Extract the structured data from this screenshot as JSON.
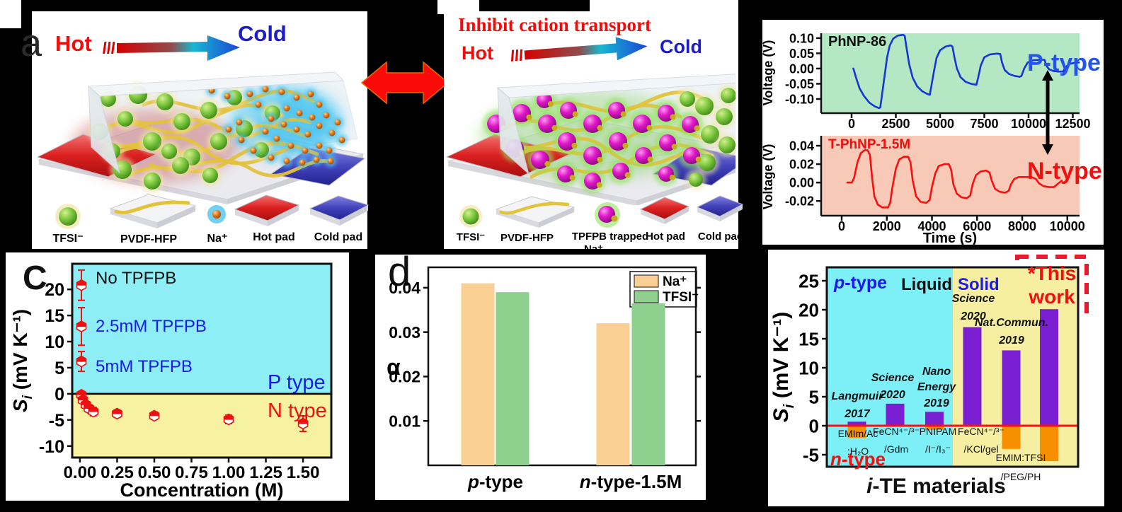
{
  "background": "#000000",
  "panel_a": {
    "letter": "a",
    "hot": "Hot",
    "cold": "Cold",
    "legend": [
      {
        "icon": "tfsi-sphere",
        "label": "TFSI⁻"
      },
      {
        "icon": "pvdf-slab",
        "label": "PVDF-HFP"
      },
      {
        "icon": "na-ion",
        "label": "Na⁺"
      },
      {
        "icon": "hot-pad",
        "label": "Hot pad"
      },
      {
        "icon": "cold-pad",
        "label": "Cold pad"
      }
    ]
  },
  "panel_b": {
    "title": "Inhibit cation transport",
    "hot": "Hot",
    "cold": "Cold",
    "legend": [
      {
        "icon": "tfsi-sphere",
        "label": "TFSI⁻"
      },
      {
        "icon": "pvdf-slab",
        "label": "PVDF-HFP"
      },
      {
        "icon": "tpfpb-trapped-na",
        "label": "TPFPB trapped",
        "label2": "Na⁺"
      },
      {
        "icon": "hot-pad",
        "label": "Hot pad"
      },
      {
        "icon": "cold-pad",
        "label": "Cold pad"
      }
    ]
  },
  "chart_data": [
    {
      "id": "p_type_voltage",
      "type": "line",
      "title": "PhNP-86",
      "annotation": "P-type",
      "ylabel": "Voltage (V)",
      "xlim": [
        -1720,
        12880
      ],
      "ylim": [
        -0.1465,
        0.116
      ],
      "xticks": [
        "0",
        "2500",
        "5000",
        "7500",
        "10000",
        "12500"
      ],
      "yticks": [
        "0.10",
        "0.05",
        "0.00",
        "-0.05",
        "-0.10"
      ],
      "line_color": "#1535d6",
      "bg": "#b4e7c4",
      "points": [
        [
          100,
          0.0
        ],
        [
          250,
          -0.03
        ],
        [
          450,
          -0.065
        ],
        [
          700,
          -0.09
        ],
        [
          1000,
          -0.112
        ],
        [
          1300,
          -0.124
        ],
        [
          1550,
          -0.13
        ],
        [
          1620,
          -0.128
        ],
        [
          1700,
          -0.095
        ],
        [
          1850,
          -0.03
        ],
        [
          2000,
          0.035
        ],
        [
          2150,
          0.075
        ],
        [
          2350,
          0.098
        ],
        [
          2600,
          0.108
        ],
        [
          2900,
          0.111
        ],
        [
          3000,
          0.108
        ],
        [
          3100,
          0.07
        ],
        [
          3250,
          0.015
        ],
        [
          3450,
          -0.03
        ],
        [
          3700,
          -0.058
        ],
        [
          4000,
          -0.075
        ],
        [
          4300,
          -0.084
        ],
        [
          4420,
          -0.086
        ],
        [
          4500,
          -0.06
        ],
        [
          4650,
          -0.01
        ],
        [
          4800,
          0.035
        ],
        [
          5000,
          0.06
        ],
        [
          5300,
          0.072
        ],
        [
          5600,
          0.076
        ],
        [
          5700,
          0.072
        ],
        [
          5800,
          0.04
        ],
        [
          5950,
          0.0
        ],
        [
          6150,
          -0.028
        ],
        [
          6450,
          -0.044
        ],
        [
          6800,
          -0.051
        ],
        [
          7050,
          -0.053
        ],
        [
          7150,
          -0.03
        ],
        [
          7300,
          0.01
        ],
        [
          7500,
          0.037
        ],
        [
          7800,
          0.046
        ],
        [
          8200,
          0.049
        ],
        [
          8400,
          0.048
        ],
        [
          8500,
          0.02
        ],
        [
          8650,
          -0.005
        ],
        [
          8900,
          -0.018
        ],
        [
          9200,
          -0.024
        ],
        [
          9500,
          -0.027
        ],
        [
          9600,
          -0.024
        ],
        [
          9750,
          0.0
        ],
        [
          9950,
          0.02
        ],
        [
          10250,
          0.027
        ],
        [
          10600,
          0.029
        ],
        [
          10900,
          0.029
        ],
        [
          11000,
          0.01
        ],
        [
          11150,
          -0.002
        ],
        [
          11400,
          -0.008
        ],
        [
          11700,
          -0.01
        ],
        [
          11950,
          -0.01
        ],
        [
          12050,
          0.0
        ],
        [
          12100,
          0.005
        ],
        [
          12300,
          0.015
        ],
        [
          12600,
          0.019
        ],
        [
          12850,
          0.02
        ]
      ]
    },
    {
      "id": "n_type_voltage",
      "type": "line",
      "title": "T-PhNP-1.5M",
      "annotation": "N-type",
      "xlabel": "Time (s)",
      "ylabel": "Voltage (V)",
      "xlim": [
        -910,
        10540
      ],
      "ylim": [
        -0.036,
        0.0508
      ],
      "xticks": [
        "0",
        "2000",
        "4000",
        "6000",
        "8000",
        "10000"
      ],
      "yticks": [
        "0.04",
        "0.02",
        "0.00",
        "-0.02"
      ],
      "line_color": "#fa0f0f",
      "bg": "#f7c9b6",
      "points": [
        [
          250,
          0.0
        ],
        [
          450,
          0.0
        ],
        [
          550,
          0.005
        ],
        [
          700,
          0.022
        ],
        [
          850,
          0.032
        ],
        [
          1000,
          0.035
        ],
        [
          1150,
          0.035
        ],
        [
          1250,
          0.03
        ],
        [
          1350,
          0.005
        ],
        [
          1450,
          -0.015
        ],
        [
          1600,
          -0.024
        ],
        [
          1800,
          -0.027
        ],
        [
          2050,
          -0.027
        ],
        [
          2150,
          -0.022
        ],
        [
          2250,
          -0.005
        ],
        [
          2400,
          0.015
        ],
        [
          2550,
          0.025
        ],
        [
          2750,
          0.028
        ],
        [
          2950,
          0.028
        ],
        [
          3050,
          0.022
        ],
        [
          3150,
          0.002
        ],
        [
          3300,
          -0.015
        ],
        [
          3500,
          -0.021
        ],
        [
          3750,
          -0.022
        ],
        [
          3900,
          -0.019
        ],
        [
          4000,
          -0.005
        ],
        [
          4150,
          0.01
        ],
        [
          4300,
          0.018
        ],
        [
          4550,
          0.02
        ],
        [
          4750,
          0.02
        ],
        [
          4850,
          0.014
        ],
        [
          4950,
          -0.002
        ],
        [
          5100,
          -0.012
        ],
        [
          5300,
          -0.016
        ],
        [
          5550,
          -0.017
        ],
        [
          5700,
          -0.014
        ],
        [
          5800,
          -0.002
        ],
        [
          5950,
          0.008
        ],
        [
          6150,
          0.012
        ],
        [
          6400,
          0.013
        ],
        [
          6550,
          0.011
        ],
        [
          6650,
          0.002
        ],
        [
          6800,
          -0.007
        ],
        [
          7000,
          -0.01
        ],
        [
          7250,
          -0.011
        ],
        [
          7400,
          -0.009
        ],
        [
          7500,
          -0.002
        ],
        [
          7650,
          0.004
        ],
        [
          7850,
          0.006
        ],
        [
          8100,
          0.006
        ],
        [
          8400,
          0.006
        ],
        [
          8600,
          0.004
        ],
        [
          8750,
          -0.001
        ],
        [
          8950,
          -0.004
        ],
        [
          9200,
          -0.005
        ],
        [
          9400,
          -0.005
        ],
        [
          9550,
          -0.002
        ],
        [
          9650,
          0.0
        ],
        [
          9750,
          0.002
        ]
      ]
    },
    {
      "id": "si_vs_concentration",
      "type": "scatter",
      "panel_letter": "C",
      "xlabel": "Concentration (M)",
      "ylabel": "Sᵢ (mV K⁻¹)",
      "ylabel_s": "S",
      "ylabel_sub": "i",
      "ylabel_rest": " (mV K⁻¹)",
      "xlim": [
        -0.052,
        1.69
      ],
      "ylim": [
        -12.2,
        24.9
      ],
      "xticks": [
        "0.00",
        "0.25",
        "0.50",
        "0.75",
        "1.00",
        "1.25",
        "1.50"
      ],
      "yticks": [
        "20",
        "15",
        "10",
        "5",
        "0",
        "-5",
        "-10"
      ],
      "p_region_label": "P type",
      "n_region_label": "N type",
      "p_region_color": "#8deef6",
      "n_region_color": "#f6f2a2",
      "marker_color": "#ee1111",
      "annotations": [
        "No TPFPB",
        "2.5mM TPFPB",
        "5mM TPFPB"
      ],
      "points": [
        {
          "x": 0.01,
          "y": 20.8,
          "err": 2.9
        },
        {
          "x": 0.01,
          "y": 12.9,
          "err": 3.6
        },
        {
          "x": 0.01,
          "y": 6.2,
          "err": 1.9
        },
        {
          "x": 0.01,
          "y": -0.2,
          "err": 0.5
        },
        {
          "x": 0.02,
          "y": -1.2,
          "err": 0.5
        },
        {
          "x": 0.04,
          "y": -2.1,
          "err": 0.6
        },
        {
          "x": 0.06,
          "y": -2.8,
          "err": 0.7
        },
        {
          "x": 0.09,
          "y": -3.4,
          "err": 0.8
        },
        {
          "x": 0.25,
          "y": -3.8,
          "err": 0.7
        },
        {
          "x": 0.5,
          "y": -4.2,
          "err": 0.7
        },
        {
          "x": 1.0,
          "y": -4.9,
          "err": 0.8
        },
        {
          "x": 1.5,
          "y": -5.7,
          "err": 1.5
        }
      ]
    },
    {
      "id": "alpha_transference",
      "type": "bar",
      "panel_letter": "d",
      "ylabel": "α",
      "categories": [
        {
          "i": "p",
          "rest": "-type"
        },
        {
          "i": "n",
          "rest": "-type-1.5M"
        }
      ],
      "series": [
        {
          "name": "Na⁺",
          "color": "#f9cf94",
          "values": [
            0.041,
            0.032
          ]
        },
        {
          "name": "TFSI⁻",
          "color": "#8fd08f",
          "values": [
            0.039,
            0.0365
          ]
        }
      ],
      "yticks": [
        "0.04",
        "0.03",
        "0.02",
        "0.01"
      ],
      "ylim": [
        0,
        0.0446
      ]
    },
    {
      "id": "ite_materials_comparison",
      "type": "bar",
      "xlabel_i": "i",
      "xlabel_rest": "-TE materials",
      "ylabel": "Sᵢ (mV K⁻¹)",
      "ylabel_s": "S",
      "ylabel_sub": "i",
      "ylabel_rest": " (mV K⁻¹)",
      "yticks": [
        "25",
        "20",
        "15",
        "10",
        "5",
        "0",
        "-5"
      ],
      "ylim": [
        -7.07,
        27.32
      ],
      "p_label_i": "p",
      "p_label_rest": "-type",
      "n_label_i": "n",
      "n_label_rest": "-type",
      "liquid_label": "Liquid",
      "solid_label": "Solid",
      "highlight_line1": "*This",
      "highlight_line2": "work",
      "pos_color": "#7a1ed2",
      "neg_color": "#f88f00",
      "liquid_bg": "#7df0f7",
      "solid_bg": "#f6efa1",
      "zero_line_color": "#fb1111",
      "bars": [
        {
          "citation": [
            "Langmuir",
            "2017"
          ],
          "material": [
            "EMIm/Ac",
            ":H₂O"
          ],
          "p": 0.7,
          "n": -2.1
        },
        {
          "citation": [
            "Science",
            "2020"
          ],
          "material": [
            "FeCN⁴⁻/³⁻",
            "/Gdm"
          ],
          "p": 3.8,
          "n": 0
        },
        {
          "citation": [
            "Nano",
            "Energy",
            "2019"
          ],
          "material": [
            "PNIPAM",
            "/I⁻/I₃⁻"
          ],
          "p": 2.4,
          "n": -0.7
        },
        {
          "citation": [
            "Science",
            "2020"
          ],
          "material": [
            "FeCN⁴⁻/³⁻",
            "/KCl/gel"
          ],
          "p": 17.0,
          "n": 0
        },
        {
          "citation": [
            "Nat.Commun.",
            "2019"
          ],
          "material": [
            "EMIM:TFSI",
            "/PEG/PH"
          ],
          "p": 13.0,
          "n": -4.0
        },
        {
          "citation": [],
          "material": [],
          "p": 20.1,
          "n": -6.1,
          "this_work": true
        }
      ]
    }
  ]
}
